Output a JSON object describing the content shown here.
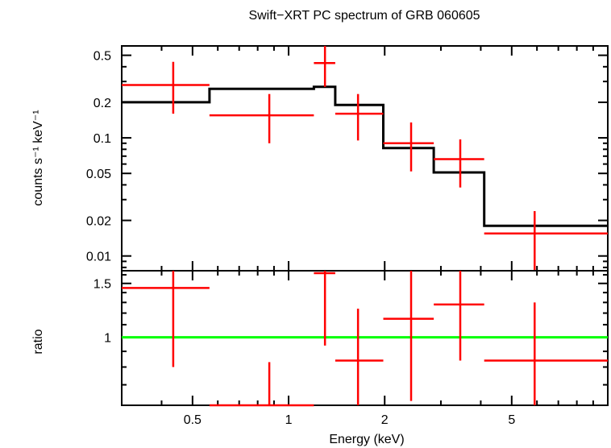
{
  "chart_data": [
    {
      "type": "scatter",
      "title": "Swift−XRT PC spectrum of GRB 060605",
      "xlabel": "Energy (keV)",
      "ylabel": "counts s⁻¹ keV⁻¹",
      "xscale": "log",
      "yscale": "log",
      "xlim": [
        0.3,
        10
      ],
      "ylim": [
        0.0075,
        0.6
      ],
      "grid": false,
      "x_tick_labels": [
        "0.5",
        "1",
        "2",
        "5"
      ],
      "x_ticks": [
        0.5,
        1,
        2,
        5
      ],
      "y_tick_labels": [
        "0.5",
        "0.2",
        "0.1",
        "0.05",
        "0.02",
        "0.01"
      ],
      "y_ticks": [
        0.5,
        0.2,
        0.1,
        0.05,
        0.02,
        0.01
      ],
      "series": [
        {
          "kind": "data-with-errors",
          "color": "#ff0000",
          "points": [
            {
              "x": 0.435,
              "xlo": 0.3,
              "xhi": 0.565,
              "y": 0.28,
              "ylo": 0.16,
              "yhi": 0.44
            },
            {
              "x": 0.87,
              "xlo": 0.565,
              "xhi": 1.2,
              "y": 0.155,
              "ylo": 0.09,
              "yhi": 0.235
            },
            {
              "x": 1.3,
              "xlo": 1.2,
              "xhi": 1.4,
              "y": 0.43,
              "ylo": 0.27,
              "yhi": 0.6
            },
            {
              "x": 1.65,
              "xlo": 1.4,
              "xhi": 1.98,
              "y": 0.16,
              "ylo": 0.095,
              "yhi": 0.235
            },
            {
              "x": 2.42,
              "xlo": 1.98,
              "xhi": 2.85,
              "y": 0.09,
              "ylo": 0.052,
              "yhi": 0.135
            },
            {
              "x": 3.45,
              "xlo": 2.85,
              "xhi": 4.1,
              "y": 0.066,
              "ylo": 0.038,
              "yhi": 0.097
            },
            {
              "x": 5.9,
              "xlo": 4.1,
              "xhi": 10,
              "y": 0.0155,
              "ylo": 0.0075,
              "yhi": 0.024
            }
          ]
        },
        {
          "kind": "model-step",
          "color": "#000000",
          "edges": [
            0.3,
            0.565,
            1.2,
            1.4,
            1.98,
            2.85,
            4.1,
            10
          ],
          "values": [
            0.2,
            0.26,
            0.27,
            0.19,
            0.082,
            0.051,
            0.018
          ]
        }
      ]
    },
    {
      "type": "scatter",
      "title": "",
      "xlabel": "Energy (keV)",
      "ylabel": "ratio",
      "xscale": "log",
      "yscale": "log",
      "xlim": [
        0.3,
        10
      ],
      "ylim": [
        0.6,
        1.65
      ],
      "grid": false,
      "x_tick_labels": [
        "0.5",
        "1",
        "2",
        "5"
      ],
      "x_ticks": [
        0.5,
        1,
        2,
        5
      ],
      "y_tick_labels": [
        "1.5",
        "1"
      ],
      "y_ticks": [
        1.5,
        1
      ],
      "reference_line": {
        "y": 1,
        "color": "#00ff00"
      },
      "series": [
        {
          "kind": "data-with-errors",
          "color": "#ff0000",
          "points": [
            {
              "x": 0.435,
              "xlo": 0.3,
              "xhi": 0.565,
              "y": 1.45,
              "ylo": 0.8,
              "yhi": 1.65
            },
            {
              "x": 0.87,
              "xlo": 0.565,
              "xhi": 1.2,
              "y": 0.6,
              "ylo": 0.6,
              "yhi": 0.83
            },
            {
              "x": 1.3,
              "xlo": 1.2,
              "xhi": 1.4,
              "y": 1.62,
              "ylo": 0.94,
              "yhi": 1.65
            },
            {
              "x": 1.65,
              "xlo": 1.4,
              "xhi": 1.98,
              "y": 0.84,
              "ylo": 0.6,
              "yhi": 1.24
            },
            {
              "x": 2.42,
              "xlo": 1.98,
              "xhi": 2.85,
              "y": 1.15,
              "ylo": 0.62,
              "yhi": 1.65
            },
            {
              "x": 3.45,
              "xlo": 2.85,
              "xhi": 4.1,
              "y": 1.28,
              "ylo": 0.84,
              "yhi": 1.65
            },
            {
              "x": 5.9,
              "xlo": 4.1,
              "xhi": 10,
              "y": 0.84,
              "ylo": 0.6,
              "yhi": 1.3
            }
          ]
        }
      ]
    }
  ],
  "colors": {
    "data": "#ff0000",
    "model": "#000000",
    "ratio_line": "#00ff00",
    "frame": "#000000"
  }
}
